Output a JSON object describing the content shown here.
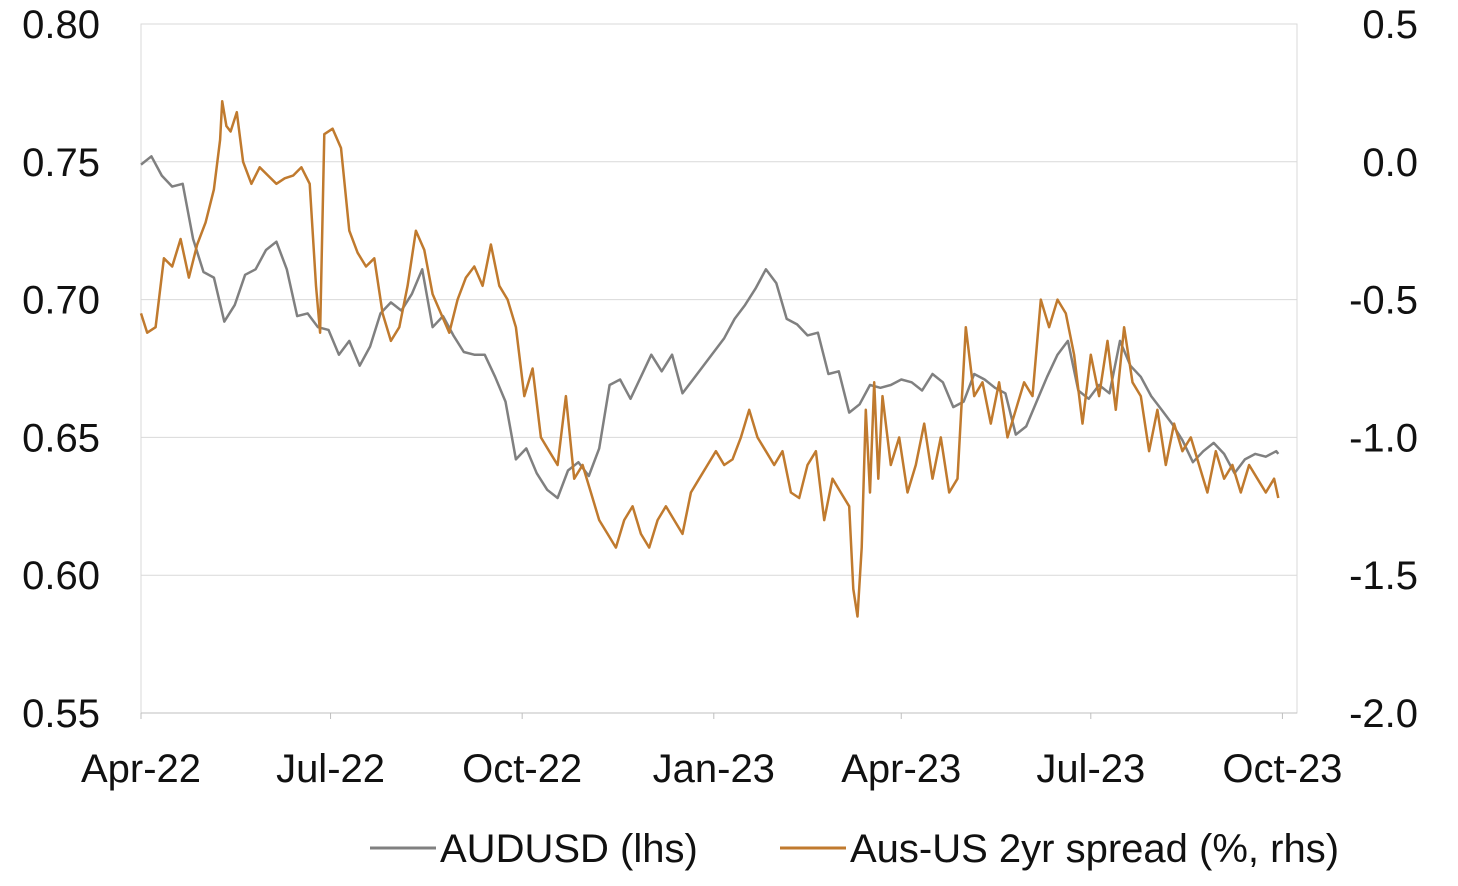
{
  "chart_data": {
    "type": "line",
    "title": "",
    "xlabel": "",
    "ylabel_left": "",
    "ylabel_right": "",
    "x_ticks": [
      "Apr-22",
      "Jul-22",
      "Oct-22",
      "Jan-23",
      "Apr-23",
      "Jul-23",
      "Oct-23"
    ],
    "x_tick_dates": [
      "2022-04-01",
      "2022-07-01",
      "2022-10-01",
      "2023-01-01",
      "2023-04-01",
      "2023-07-01",
      "2023-10-01"
    ],
    "xlim": [
      "2022-04-01",
      "2023-10-08"
    ],
    "y_left": {
      "ylim": [
        0.55,
        0.8
      ],
      "ticks": [
        "0.55",
        "0.60",
        "0.65",
        "0.70",
        "0.75",
        "0.80"
      ]
    },
    "y_right": {
      "ylim": [
        -2.0,
        0.5
      ],
      "ticks": [
        "-2.0",
        "-1.5",
        "-1.0",
        "-0.5",
        "0.0",
        "0.5"
      ]
    },
    "grid": {
      "horizontal": true,
      "vertical": false
    },
    "legend": {
      "position": "bottom"
    },
    "series": [
      {
        "name": "AUDUSD (lhs)",
        "axis": "left",
        "color": "#808080",
        "points": [
          [
            "2022-04-01",
            0.749
          ],
          [
            "2022-04-06",
            0.752
          ],
          [
            "2022-04-11",
            0.745
          ],
          [
            "2022-04-16",
            0.741
          ],
          [
            "2022-04-21",
            0.742
          ],
          [
            "2022-04-26",
            0.722
          ],
          [
            "2022-05-01",
            0.71
          ],
          [
            "2022-05-06",
            0.708
          ],
          [
            "2022-05-11",
            0.692
          ],
          [
            "2022-05-16",
            0.698
          ],
          [
            "2022-05-21",
            0.709
          ],
          [
            "2022-05-26",
            0.711
          ],
          [
            "2022-05-31",
            0.718
          ],
          [
            "2022-06-05",
            0.721
          ],
          [
            "2022-06-10",
            0.711
          ],
          [
            "2022-06-15",
            0.694
          ],
          [
            "2022-06-20",
            0.695
          ],
          [
            "2022-06-25",
            0.69
          ],
          [
            "2022-06-30",
            0.689
          ],
          [
            "2022-07-05",
            0.68
          ],
          [
            "2022-07-10",
            0.685
          ],
          [
            "2022-07-15",
            0.676
          ],
          [
            "2022-07-20",
            0.683
          ],
          [
            "2022-07-25",
            0.695
          ],
          [
            "2022-07-30",
            0.699
          ],
          [
            "2022-08-04",
            0.696
          ],
          [
            "2022-08-09",
            0.702
          ],
          [
            "2022-08-14",
            0.711
          ],
          [
            "2022-08-19",
            0.69
          ],
          [
            "2022-08-24",
            0.694
          ],
          [
            "2022-08-29",
            0.687
          ],
          [
            "2022-09-03",
            0.681
          ],
          [
            "2022-09-08",
            0.68
          ],
          [
            "2022-09-13",
            0.68
          ],
          [
            "2022-09-18",
            0.672
          ],
          [
            "2022-09-23",
            0.663
          ],
          [
            "2022-09-28",
            0.642
          ],
          [
            "2022-10-03",
            0.646
          ],
          [
            "2022-10-08",
            0.637
          ],
          [
            "2022-10-13",
            0.631
          ],
          [
            "2022-10-18",
            0.628
          ],
          [
            "2022-10-23",
            0.638
          ],
          [
            "2022-10-28",
            0.641
          ],
          [
            "2022-11-02",
            0.636
          ],
          [
            "2022-11-07",
            0.646
          ],
          [
            "2022-11-12",
            0.669
          ],
          [
            "2022-11-17",
            0.671
          ],
          [
            "2022-11-22",
            0.664
          ],
          [
            "2022-11-27",
            0.672
          ],
          [
            "2022-12-02",
            0.68
          ],
          [
            "2022-12-07",
            0.674
          ],
          [
            "2022-12-12",
            0.68
          ],
          [
            "2022-12-17",
            0.666
          ],
          [
            "2022-12-22",
            0.671
          ],
          [
            "2022-12-27",
            0.676
          ],
          [
            "2023-01-01",
            0.681
          ],
          [
            "2023-01-06",
            0.686
          ],
          [
            "2023-01-11",
            0.693
          ],
          [
            "2023-01-16",
            0.698
          ],
          [
            "2023-01-21",
            0.704
          ],
          [
            "2023-01-26",
            0.711
          ],
          [
            "2023-01-31",
            0.706
          ],
          [
            "2023-02-05",
            0.693
          ],
          [
            "2023-02-10",
            0.691
          ],
          [
            "2023-02-15",
            0.687
          ],
          [
            "2023-02-20",
            0.688
          ],
          [
            "2023-02-25",
            0.673
          ],
          [
            "2023-03-02",
            0.674
          ],
          [
            "2023-03-07",
            0.659
          ],
          [
            "2023-03-12",
            0.662
          ],
          [
            "2023-03-17",
            0.669
          ],
          [
            "2023-03-22",
            0.668
          ],
          [
            "2023-03-27",
            0.669
          ],
          [
            "2023-04-01",
            0.671
          ],
          [
            "2023-04-06",
            0.67
          ],
          [
            "2023-04-11",
            0.667
          ],
          [
            "2023-04-16",
            0.673
          ],
          [
            "2023-04-21",
            0.67
          ],
          [
            "2023-04-26",
            0.661
          ],
          [
            "2023-05-01",
            0.663
          ],
          [
            "2023-05-06",
            0.673
          ],
          [
            "2023-05-11",
            0.671
          ],
          [
            "2023-05-16",
            0.668
          ],
          [
            "2023-05-21",
            0.666
          ],
          [
            "2023-05-26",
            0.651
          ],
          [
            "2023-05-31",
            0.654
          ],
          [
            "2023-06-05",
            0.663
          ],
          [
            "2023-06-10",
            0.672
          ],
          [
            "2023-06-15",
            0.68
          ],
          [
            "2023-06-20",
            0.685
          ],
          [
            "2023-06-25",
            0.667
          ],
          [
            "2023-06-30",
            0.664
          ],
          [
            "2023-07-05",
            0.669
          ],
          [
            "2023-07-10",
            0.666
          ],
          [
            "2023-07-15",
            0.685
          ],
          [
            "2023-07-20",
            0.676
          ],
          [
            "2023-07-25",
            0.672
          ],
          [
            "2023-07-30",
            0.665
          ],
          [
            "2023-08-04",
            0.66
          ],
          [
            "2023-08-09",
            0.655
          ],
          [
            "2023-08-14",
            0.649
          ],
          [
            "2023-08-19",
            0.641
          ],
          [
            "2023-08-24",
            0.645
          ],
          [
            "2023-08-29",
            0.648
          ],
          [
            "2023-09-03",
            0.644
          ],
          [
            "2023-09-08",
            0.637
          ],
          [
            "2023-09-13",
            0.642
          ],
          [
            "2023-09-18",
            0.644
          ],
          [
            "2023-09-23",
            0.643
          ],
          [
            "2023-09-28",
            0.645
          ],
          [
            "2023-09-29",
            0.644
          ]
        ]
      },
      {
        "name": "Aus-US 2yr spread (%, rhs)",
        "axis": "right",
        "color": "#C07A2E",
        "points": [
          [
            "2022-04-01",
            -0.55
          ],
          [
            "2022-04-04",
            -0.62
          ],
          [
            "2022-04-08",
            -0.6
          ],
          [
            "2022-04-12",
            -0.35
          ],
          [
            "2022-04-16",
            -0.38
          ],
          [
            "2022-04-20",
            -0.28
          ],
          [
            "2022-04-24",
            -0.42
          ],
          [
            "2022-04-28",
            -0.3
          ],
          [
            "2022-05-02",
            -0.22
          ],
          [
            "2022-05-06",
            -0.1
          ],
          [
            "2022-05-09",
            0.08
          ],
          [
            "2022-05-10",
            0.22
          ],
          [
            "2022-05-12",
            0.13
          ],
          [
            "2022-05-14",
            0.11
          ],
          [
            "2022-05-17",
            0.18
          ],
          [
            "2022-05-20",
            0.0
          ],
          [
            "2022-05-24",
            -0.08
          ],
          [
            "2022-05-28",
            -0.02
          ],
          [
            "2022-06-01",
            -0.05
          ],
          [
            "2022-06-05",
            -0.08
          ],
          [
            "2022-06-09",
            -0.06
          ],
          [
            "2022-06-13",
            -0.05
          ],
          [
            "2022-06-17",
            -0.02
          ],
          [
            "2022-06-21",
            -0.08
          ],
          [
            "2022-06-24",
            -0.45
          ],
          [
            "2022-06-26",
            -0.62
          ],
          [
            "2022-06-28",
            0.1
          ],
          [
            "2022-07-02",
            0.12
          ],
          [
            "2022-07-06",
            0.05
          ],
          [
            "2022-07-10",
            -0.25
          ],
          [
            "2022-07-14",
            -0.33
          ],
          [
            "2022-07-18",
            -0.38
          ],
          [
            "2022-07-22",
            -0.35
          ],
          [
            "2022-07-26",
            -0.55
          ],
          [
            "2022-07-30",
            -0.65
          ],
          [
            "2022-08-03",
            -0.6
          ],
          [
            "2022-08-07",
            -0.45
          ],
          [
            "2022-08-11",
            -0.25
          ],
          [
            "2022-08-15",
            -0.32
          ],
          [
            "2022-08-19",
            -0.48
          ],
          [
            "2022-08-23",
            -0.55
          ],
          [
            "2022-08-27",
            -0.62
          ],
          [
            "2022-08-31",
            -0.5
          ],
          [
            "2022-09-04",
            -0.42
          ],
          [
            "2022-09-08",
            -0.38
          ],
          [
            "2022-09-12",
            -0.45
          ],
          [
            "2022-09-16",
            -0.3
          ],
          [
            "2022-09-20",
            -0.45
          ],
          [
            "2022-09-24",
            -0.5
          ],
          [
            "2022-09-28",
            -0.6
          ],
          [
            "2022-10-02",
            -0.85
          ],
          [
            "2022-10-06",
            -0.75
          ],
          [
            "2022-10-10",
            -1.0
          ],
          [
            "2022-10-14",
            -1.05
          ],
          [
            "2022-10-18",
            -1.1
          ],
          [
            "2022-10-22",
            -0.85
          ],
          [
            "2022-10-26",
            -1.15
          ],
          [
            "2022-10-30",
            -1.1
          ],
          [
            "2022-11-03",
            -1.2
          ],
          [
            "2022-11-07",
            -1.3
          ],
          [
            "2022-11-11",
            -1.35
          ],
          [
            "2022-11-15",
            -1.4
          ],
          [
            "2022-11-19",
            -1.3
          ],
          [
            "2022-11-23",
            -1.25
          ],
          [
            "2022-11-27",
            -1.35
          ],
          [
            "2022-12-01",
            -1.4
          ],
          [
            "2022-12-05",
            -1.3
          ],
          [
            "2022-12-09",
            -1.25
          ],
          [
            "2022-12-13",
            -1.3
          ],
          [
            "2022-12-17",
            -1.35
          ],
          [
            "2022-12-21",
            -1.2
          ],
          [
            "2022-12-25",
            -1.15
          ],
          [
            "2022-12-29",
            -1.1
          ],
          [
            "2023-01-02",
            -1.05
          ],
          [
            "2023-01-06",
            -1.1
          ],
          [
            "2023-01-10",
            -1.08
          ],
          [
            "2023-01-14",
            -1.0
          ],
          [
            "2023-01-18",
            -0.9
          ],
          [
            "2023-01-22",
            -1.0
          ],
          [
            "2023-01-26",
            -1.05
          ],
          [
            "2023-01-30",
            -1.1
          ],
          [
            "2023-02-03",
            -1.05
          ],
          [
            "2023-02-07",
            -1.2
          ],
          [
            "2023-02-11",
            -1.22
          ],
          [
            "2023-02-15",
            -1.1
          ],
          [
            "2023-02-19",
            -1.05
          ],
          [
            "2023-02-23",
            -1.3
          ],
          [
            "2023-02-27",
            -1.15
          ],
          [
            "2023-03-03",
            -1.2
          ],
          [
            "2023-03-07",
            -1.25
          ],
          [
            "2023-03-09",
            -1.55
          ],
          [
            "2023-03-11",
            -1.65
          ],
          [
            "2023-03-13",
            -1.4
          ],
          [
            "2023-03-15",
            -0.9
          ],
          [
            "2023-03-17",
            -1.2
          ],
          [
            "2023-03-19",
            -0.8
          ],
          [
            "2023-03-21",
            -1.15
          ],
          [
            "2023-03-23",
            -0.85
          ],
          [
            "2023-03-27",
            -1.1
          ],
          [
            "2023-03-31",
            -1.0
          ],
          [
            "2023-04-04",
            -1.2
          ],
          [
            "2023-04-08",
            -1.1
          ],
          [
            "2023-04-12",
            -0.95
          ],
          [
            "2023-04-16",
            -1.15
          ],
          [
            "2023-04-20",
            -1.0
          ],
          [
            "2023-04-24",
            -1.2
          ],
          [
            "2023-04-28",
            -1.15
          ],
          [
            "2023-05-02",
            -0.6
          ],
          [
            "2023-05-06",
            -0.85
          ],
          [
            "2023-05-10",
            -0.8
          ],
          [
            "2023-05-14",
            -0.95
          ],
          [
            "2023-05-18",
            -0.8
          ],
          [
            "2023-05-22",
            -1.0
          ],
          [
            "2023-05-26",
            -0.9
          ],
          [
            "2023-05-30",
            -0.8
          ],
          [
            "2023-06-03",
            -0.85
          ],
          [
            "2023-06-07",
            -0.5
          ],
          [
            "2023-06-11",
            -0.6
          ],
          [
            "2023-06-15",
            -0.5
          ],
          [
            "2023-06-19",
            -0.55
          ],
          [
            "2023-06-23",
            -0.7
          ],
          [
            "2023-06-27",
            -0.95
          ],
          [
            "2023-07-01",
            -0.7
          ],
          [
            "2023-07-05",
            -0.85
          ],
          [
            "2023-07-09",
            -0.65
          ],
          [
            "2023-07-13",
            -0.9
          ],
          [
            "2023-07-17",
            -0.6
          ],
          [
            "2023-07-21",
            -0.8
          ],
          [
            "2023-07-25",
            -0.85
          ],
          [
            "2023-07-29",
            -1.05
          ],
          [
            "2023-08-02",
            -0.9
          ],
          [
            "2023-08-06",
            -1.1
          ],
          [
            "2023-08-10",
            -0.95
          ],
          [
            "2023-08-14",
            -1.05
          ],
          [
            "2023-08-18",
            -1.0
          ],
          [
            "2023-08-22",
            -1.1
          ],
          [
            "2023-08-26",
            -1.2
          ],
          [
            "2023-08-30",
            -1.05
          ],
          [
            "2023-09-03",
            -1.15
          ],
          [
            "2023-09-07",
            -1.1
          ],
          [
            "2023-09-11",
            -1.2
          ],
          [
            "2023-09-15",
            -1.1
          ],
          [
            "2023-09-19",
            -1.15
          ],
          [
            "2023-09-23",
            -1.2
          ],
          [
            "2023-09-27",
            -1.15
          ],
          [
            "2023-09-29",
            -1.22
          ]
        ]
      }
    ]
  }
}
